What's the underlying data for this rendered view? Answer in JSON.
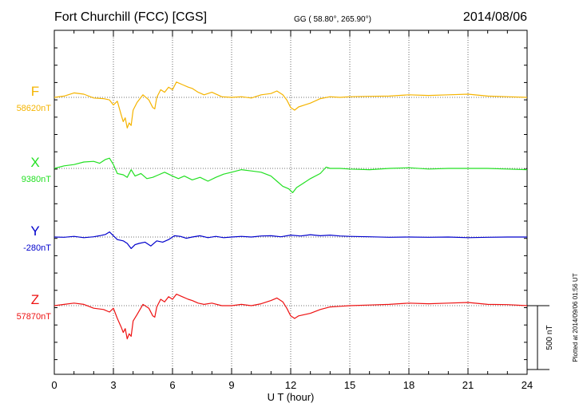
{
  "header": {
    "station": "Fort Churchill (FCC)  [CGS]",
    "coords": "GG ( 58.80°, 265.90°)",
    "date": "2014/08/06"
  },
  "footer": {
    "plotted": "Plotted at 2014/09/06 01:56 UT"
  },
  "chart_data": {
    "type": "line",
    "xlabel": "U T (hour)",
    "xlim": [
      0,
      24
    ],
    "xticks": [
      "0",
      "3",
      "6",
      "9",
      "12",
      "15",
      "18",
      "21",
      "24"
    ],
    "grid": true,
    "scale_bar": {
      "label": "500 nT",
      "value": 500
    },
    "series": [
      {
        "name": "F",
        "baseline_label": "58620nT",
        "color": "#f5b400",
        "x": [
          0,
          0.5,
          1,
          1.5,
          2,
          2.5,
          2.8,
          3.0,
          3.2,
          3.4,
          3.5,
          3.6,
          3.7,
          3.8,
          3.9,
          4.0,
          4.2,
          4.5,
          4.8,
          5.0,
          5.1,
          5.2,
          5.4,
          5.6,
          5.8,
          6.0,
          6.2,
          6.5,
          6.8,
          7.0,
          7.3,
          7.6,
          8,
          8.5,
          9,
          9.5,
          10,
          10.5,
          11,
          11.3,
          11.6,
          11.8,
          12.0,
          12.2,
          12.4,
          12.7,
          13,
          13.5,
          14,
          14.5,
          15,
          16,
          17,
          18,
          19,
          20,
          21,
          22,
          23,
          24
        ],
        "y": [
          58620,
          58630,
          58655,
          58645,
          58615,
          58610,
          58600,
          58560,
          58590,
          58480,
          58430,
          58460,
          58380,
          58420,
          58400,
          58520,
          58580,
          58640,
          58600,
          58540,
          58530,
          58620,
          58680,
          58660,
          58700,
          58680,
          58740,
          58720,
          58700,
          58690,
          58660,
          58640,
          58660,
          58625,
          58620,
          58625,
          58615,
          58640,
          58650,
          58670,
          58640,
          58600,
          58540,
          58520,
          58545,
          58560,
          58575,
          58610,
          58625,
          58620,
          58625,
          58628,
          58630,
          58640,
          58635,
          58640,
          58645,
          58630,
          58625,
          58620
        ]
      },
      {
        "name": "X",
        "baseline_label": "9380nT",
        "color": "#22e022",
        "x": [
          0,
          0.5,
          1,
          1.5,
          2,
          2.3,
          2.6,
          2.8,
          3.0,
          3.2,
          3.5,
          3.7,
          3.9,
          4.1,
          4.4,
          4.7,
          5.0,
          5.3,
          5.6,
          6.0,
          6.3,
          6.6,
          7.0,
          7.4,
          7.8,
          8.2,
          8.6,
          9,
          9.5,
          10,
          10.5,
          11,
          11.3,
          11.6,
          11.9,
          12.1,
          12.3,
          12.6,
          13,
          13.5,
          13.8,
          14,
          14.5,
          15,
          16,
          17,
          18,
          19,
          20,
          21,
          22,
          23,
          24
        ],
        "y": [
          9390,
          9410,
          9420,
          9440,
          9445,
          9430,
          9460,
          9470,
          9420,
          9350,
          9340,
          9320,
          9380,
          9330,
          9350,
          9310,
          9320,
          9340,
          9360,
          9330,
          9310,
          9330,
          9300,
          9320,
          9290,
          9320,
          9345,
          9360,
          9380,
          9370,
          9360,
          9330,
          9290,
          9250,
          9230,
          9200,
          9240,
          9270,
          9310,
          9350,
          9400,
          9390,
          9390,
          9385,
          9380,
          9390,
          9395,
          9385,
          9390,
          9390,
          9390,
          9385,
          9380
        ]
      },
      {
        "name": "Y",
        "baseline_label": "-280nT",
        "color": "#0000cc",
        "x": [
          0,
          0.5,
          1,
          1.5,
          2,
          2.3,
          2.6,
          2.8,
          3.0,
          3.2,
          3.5,
          3.7,
          3.9,
          4.1,
          4.3,
          4.6,
          4.9,
          5.2,
          5.5,
          5.8,
          6.1,
          6.4,
          6.7,
          7.0,
          7.4,
          7.8,
          8.2,
          8.6,
          9,
          9.5,
          10,
          10.5,
          11,
          11.5,
          12,
          12.5,
          13,
          13.5,
          14,
          14.5,
          15,
          16,
          17,
          18,
          19,
          20,
          21,
          22,
          23,
          24
        ],
        "y": [
          -280,
          -282,
          -275,
          -285,
          -278,
          -270,
          -260,
          -240,
          -270,
          -300,
          -310,
          -330,
          -370,
          -340,
          -330,
          -320,
          -350,
          -310,
          -320,
          -300,
          -270,
          -275,
          -290,
          -280,
          -270,
          -285,
          -275,
          -285,
          -280,
          -275,
          -280,
          -272,
          -270,
          -278,
          -265,
          -272,
          -262,
          -270,
          -265,
          -272,
          -275,
          -278,
          -282,
          -280,
          -282,
          -280,
          -285,
          -282,
          -280,
          -280
        ]
      },
      {
        "name": "Z",
        "baseline_label": "57870nT",
        "color": "#ee1111",
        "x": [
          0,
          0.5,
          1,
          1.5,
          2,
          2.5,
          2.8,
          3.0,
          3.2,
          3.4,
          3.5,
          3.6,
          3.7,
          3.8,
          3.9,
          4.0,
          4.2,
          4.5,
          4.8,
          5.0,
          5.1,
          5.2,
          5.4,
          5.6,
          5.8,
          6.0,
          6.2,
          6.5,
          6.8,
          7.0,
          7.3,
          7.6,
          8,
          8.5,
          9,
          9.5,
          10,
          10.5,
          11,
          11.3,
          11.6,
          11.8,
          12.0,
          12.2,
          12.4,
          12.7,
          13,
          13.5,
          14,
          14.5,
          15,
          16,
          17,
          18,
          19,
          20,
          21,
          22,
          23,
          24
        ],
        "y": [
          57870,
          57880,
          57890,
          57880,
          57850,
          57840,
          57820,
          57850,
          57770,
          57700,
          57660,
          57690,
          57610,
          57650,
          57630,
          57750,
          57800,
          57880,
          57850,
          57790,
          57780,
          57860,
          57920,
          57900,
          57940,
          57920,
          57960,
          57940,
          57920,
          57910,
          57890,
          57880,
          57890,
          57870,
          57870,
          57880,
          57870,
          57885,
          57910,
          57930,
          57900,
          57850,
          57790,
          57770,
          57790,
          57800,
          57810,
          57840,
          57860,
          57865,
          57870,
          57875,
          57880,
          57890,
          57885,
          57890,
          57895,
          57880,
          57878,
          57870
        ]
      }
    ]
  }
}
